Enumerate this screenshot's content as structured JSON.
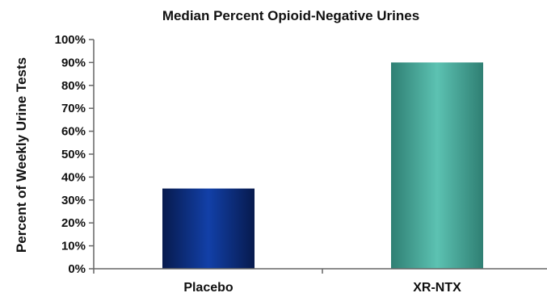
{
  "chart_data": {
    "type": "bar",
    "title": "Median Percent Opioid-Negative Urines",
    "xlabel": "",
    "ylabel": "Percent of Weekly Urine Tests",
    "categories": [
      "Placebo",
      "XR-NTX"
    ],
    "values": [
      35,
      90
    ],
    "ylim": [
      0,
      100
    ],
    "yticks": [
      "0%",
      "10%",
      "20%",
      "30%",
      "40%",
      "50%",
      "60%",
      "70%",
      "80%",
      "90%",
      "100%"
    ],
    "grid": false,
    "legend": "none",
    "colors": {
      "placebo": "#0b2a78",
      "xr_ntx": "#4aa79a"
    }
  }
}
